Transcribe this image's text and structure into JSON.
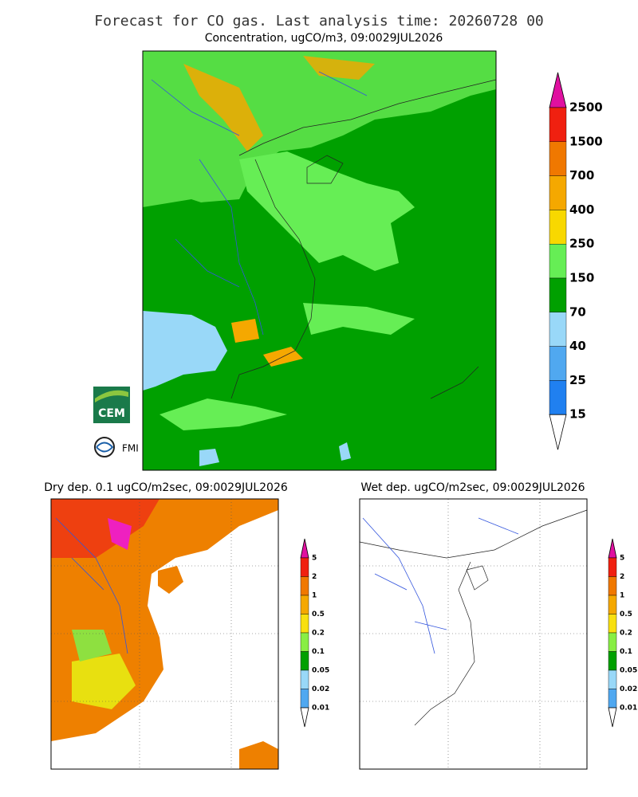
{
  "header": {
    "title": "Forecast for CO gas. Last analysis time: 20260728 00"
  },
  "main_map": {
    "title": "Concentration, ugCO/m3, 09:0029JUL2026",
    "colorbar": {
      "labels": [
        "2500",
        "1500",
        "700",
        "400",
        "250",
        "150",
        "70",
        "40",
        "25",
        "15"
      ],
      "colors": [
        "#e010a0",
        "#f02010",
        "#f07800",
        "#f5a800",
        "#f8d800",
        "#66ee55",
        "#00a000",
        "#99d8f8",
        "#50a8f0",
        "#2080f0",
        "#ffffff"
      ]
    }
  },
  "dry_panel": {
    "title": "Dry dep. 0.1 ugCO/m2sec, 09:0029JUL2026",
    "colorbar": {
      "labels": [
        "5",
        "2",
        "1",
        "0.5",
        "0.2",
        "0.1",
        "0.05",
        "0.02",
        "0.01"
      ],
      "colors": [
        "#e010a0",
        "#f02010",
        "#f07800",
        "#f5a800",
        "#f8e010",
        "#88ee44",
        "#00a000",
        "#99d8f8",
        "#50a8f0",
        "#ffffff"
      ]
    }
  },
  "wet_panel": {
    "title": "Wet dep. ugCO/m2sec, 09:0029JUL2026",
    "colorbar": {
      "labels": [
        "5",
        "2",
        "1",
        "0.5",
        "0.2",
        "0.1",
        "0.05",
        "0.02",
        "0.01"
      ],
      "colors": [
        "#e010a0",
        "#f02010",
        "#f07800",
        "#f5a800",
        "#f8e010",
        "#88ee44",
        "#00a000",
        "#99d8f8",
        "#50a8f0",
        "#ffffff"
      ]
    }
  },
  "logos": [
    "CEM",
    "FMI"
  ]
}
